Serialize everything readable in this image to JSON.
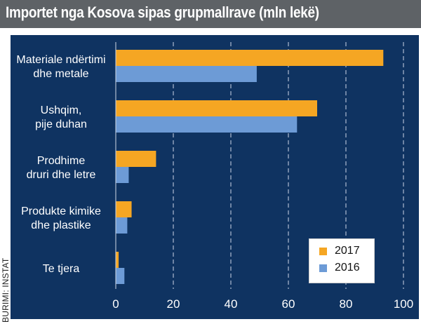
{
  "title": "Importet nga Kosova sipas grupmallrave (mln lekë)",
  "source": "BURIMI: INSTAT",
  "colors": {
    "background": "#0f3361",
    "title_bar": "#5e6266",
    "series_2017": "#f5a623",
    "series_2016": "#6d9bd6",
    "gridline": "#aebbd0",
    "text": "#ffffff"
  },
  "chart_data": {
    "type": "bar",
    "orientation": "horizontal",
    "title": "Importet nga Kosova sipas grupmallrave (mln lekë)",
    "xlabel": "",
    "ylabel": "",
    "xlim": [
      0,
      100
    ],
    "x_ticks": [
      "0",
      "20",
      "40",
      "60",
      "80",
      "100"
    ],
    "grid": "vertical dashed",
    "legend_position": "bottom-right",
    "categories": [
      [
        "Materiale ndërtimi",
        "dhe metale"
      ],
      [
        "Ushqim,",
        "pije duhan"
      ],
      [
        "Prodhime",
        "druri dhe letre"
      ],
      [
        "Produkte kimike",
        "dhe plastike"
      ],
      [
        "Te tjera"
      ]
    ],
    "series": [
      {
        "name": "2017",
        "values": [
          93,
          70,
          14,
          5.5,
          1
        ]
      },
      {
        "name": "2016",
        "values": [
          49,
          63,
          4.5,
          4,
          3
        ]
      }
    ]
  }
}
